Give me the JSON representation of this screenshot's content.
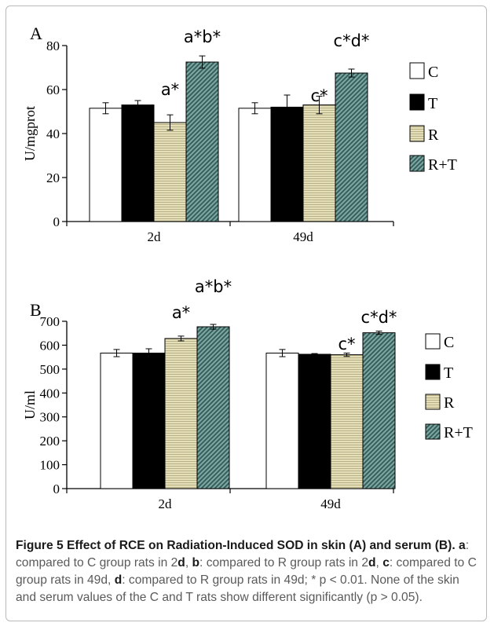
{
  "chart_data": [
    {
      "type": "bar",
      "panel": "A",
      "ylabel": "U/mgprot",
      "ylim": [
        0,
        80
      ],
      "yticks": [
        0,
        20,
        40,
        60,
        80
      ],
      "categories": [
        "2d",
        "49d"
      ],
      "series": [
        {
          "name": "C",
          "values": [
            51.5,
            51.5
          ],
          "errors": [
            2.5,
            2.5
          ]
        },
        {
          "name": "T",
          "values": [
            53.0,
            52.0
          ],
          "errors": [
            2.0,
            5.5
          ]
        },
        {
          "name": "R",
          "values": [
            45.0,
            53.0
          ],
          "errors": [
            3.5,
            4.0
          ]
        },
        {
          "name": "R+T",
          "values": [
            72.5,
            67.5
          ],
          "errors": [
            2.8,
            1.8
          ]
        }
      ],
      "annotations": [
        {
          "category": "2d",
          "series": "R",
          "text": "a*"
        },
        {
          "category": "2d",
          "series": "R+T",
          "text": "a*b*"
        },
        {
          "category": "49d",
          "series": "R",
          "text": "c*"
        },
        {
          "category": "49d",
          "series": "R+T",
          "text": "c*d*"
        }
      ]
    },
    {
      "type": "bar",
      "panel": "B",
      "ylabel": "U/ml",
      "ylim": [
        0,
        700
      ],
      "yticks": [
        0,
        100,
        200,
        300,
        400,
        500,
        600,
        700
      ],
      "categories": [
        "2d",
        "49d"
      ],
      "series": [
        {
          "name": "C",
          "values": [
            567,
            567
          ],
          "errors": [
            15,
            15
          ]
        },
        {
          "name": "T",
          "values": [
            567,
            562
          ],
          "errors": [
            18,
            3
          ]
        },
        {
          "name": "R",
          "values": [
            628,
            560
          ],
          "errors": [
            10,
            7
          ]
        },
        {
          "name": "R+T",
          "values": [
            677,
            652
          ],
          "errors": [
            10,
            7
          ]
        }
      ],
      "annotations": [
        {
          "category": "2d",
          "series": "R",
          "text": "a*"
        },
        {
          "category": "2d",
          "series": "R+T",
          "text": "a*b*"
        },
        {
          "category": "49d",
          "series": "R",
          "text": "c*"
        },
        {
          "category": "49d",
          "series": "R+T",
          "text": "c*d*"
        }
      ]
    }
  ],
  "colors": {
    "C": "#ffffff",
    "T": "#000000",
    "R": "#d8d3a6",
    "R+T": "#5e8e8a"
  },
  "caption": {
    "title": "Figure 5 Effect of RCE on Radiation-Induced SOD in skin (A) and serum (B).",
    "l1": "a",
    "t1": ": compared to C group rats in 2",
    "u1": "d",
    "t2": ", ",
    "l2": "b",
    "t3": ": compared to R group rats in 2",
    "u2": "d",
    "t4": ", ",
    "l3": "c",
    "t5": ": compared to C group rats in 49d, ",
    "l4": "d",
    "t6": ": compared to R group rats in 49d; * p < 0.01. None of the skin and serum values of the C and T rats show different significantly (p > 0.05)."
  }
}
